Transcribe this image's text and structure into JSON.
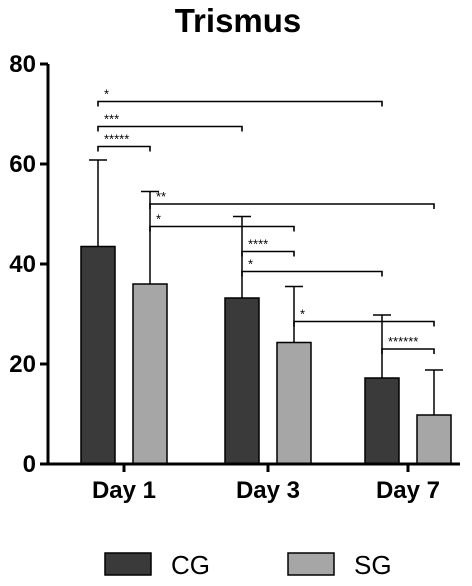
{
  "chart_data": {
    "type": "bar",
    "title": "Trismus",
    "categories": [
      "Day 1",
      "Day 3",
      "Day 7"
    ],
    "series": [
      {
        "name": "CG",
        "color": "#3a3a3a",
        "values": [
          43.5,
          33.2,
          17.2
        ],
        "error": [
          17.3,
          16.3,
          12.6
        ]
      },
      {
        "name": "SG",
        "color": "#a6a6a6",
        "values": [
          36.0,
          24.3,
          9.8
        ],
        "error": [
          18.5,
          11.2,
          9.0
        ]
      }
    ],
    "ylim": [
      0,
      80
    ],
    "yticks": [
      0,
      20,
      40,
      60,
      80
    ],
    "grid": false,
    "legend": {
      "position": "bottom",
      "entries": [
        "CG",
        "SG"
      ]
    },
    "significance": [
      {
        "from": "Day 1 CG",
        "to": "Day 1 SG",
        "label": "*****",
        "y": 63.5
      },
      {
        "from": "Day 1 CG",
        "to": "Day 3 CG",
        "label": "***",
        "y": 67.5
      },
      {
        "from": "Day 1 CG",
        "to": "Day 7 CG",
        "label": "*",
        "y": 72.5
      },
      {
        "from": "Day 1 SG",
        "to": "Day 7 SG",
        "label": "**",
        "y": 52.0
      },
      {
        "from": "Day 1 SG",
        "to": "Day 3 SG",
        "label": "*",
        "y": 47.5
      },
      {
        "from": "Day 3 CG",
        "to": "Day 3 SG",
        "label": "****",
        "y": 42.5
      },
      {
        "from": "Day 3 CG",
        "to": "Day 7 CG",
        "label": "*",
        "y": 38.5
      },
      {
        "from": "Day 3 SG",
        "to": "Day 7 SG",
        "label": "*",
        "y": 28.5
      },
      {
        "from": "Day 7 CG",
        "to": "Day 7 SG",
        "label": "******",
        "y": 23.0
      }
    ]
  }
}
